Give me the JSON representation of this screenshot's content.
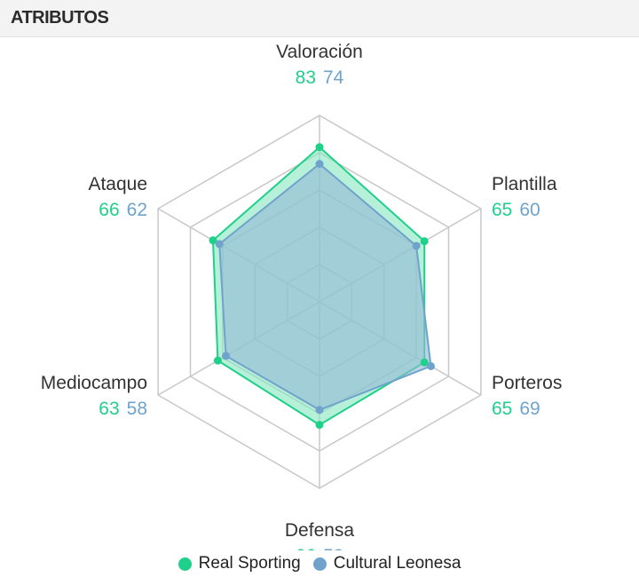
{
  "header": {
    "title": "ATRIBUTOS"
  },
  "chart_data": {
    "type": "radar",
    "max": 100,
    "rings": 5,
    "categories": [
      "Valoración",
      "Plantilla",
      "Porteros",
      "Defensa",
      "Mediocampo",
      "Ataque"
    ],
    "series": [
      {
        "name": "Real Sporting",
        "values": [
          83,
          65,
          65,
          66,
          63,
          66
        ],
        "color": "#1ed08a",
        "fill": "#86e6c0"
      },
      {
        "name": "Cultural Leonesa",
        "values": [
          74,
          60,
          69,
          58,
          58,
          62
        ],
        "color": "#6fa3cc",
        "fill": "#93b7d6"
      }
    ],
    "colors": {
      "grid": "#c8c8c8",
      "text": "#333333"
    }
  }
}
